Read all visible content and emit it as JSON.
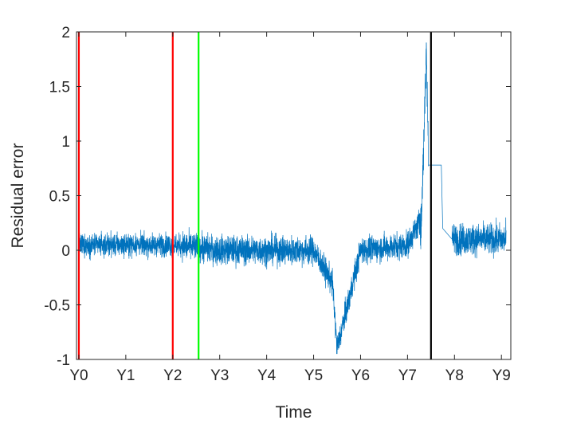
{
  "chart_data": {
    "type": "line",
    "title": "",
    "xlabel": "Time",
    "ylabel": "Residual error",
    "categories": [
      "Y0",
      "Y1",
      "Y2",
      "Y3",
      "Y4",
      "Y5",
      "Y6",
      "Y7",
      "Y8",
      "Y9"
    ],
    "xlim": [
      -0.05,
      9.2
    ],
    "ylim": [
      -1,
      2
    ],
    "yticks": [
      -1,
      -0.5,
      0,
      0.5,
      1,
      1.5,
      2
    ],
    "ytick_labels": [
      "-1",
      "-0.5",
      "0",
      "0.5",
      "1",
      "1.5",
      "2"
    ],
    "grid": false,
    "series": [
      {
        "color": "#0072BD",
        "description_points": [
          {
            "x": 0.0,
            "y": 0.05
          },
          {
            "x": 1.0,
            "y": 0.05
          },
          {
            "x": 2.0,
            "y": 0.05
          },
          {
            "x": 3.0,
            "y": 0.0
          },
          {
            "x": 4.0,
            "y": 0.0
          },
          {
            "x": 5.0,
            "y": 0.0
          },
          {
            "x": 5.4,
            "y": -0.3
          },
          {
            "x": 5.5,
            "y": -0.9
          },
          {
            "x": 6.0,
            "y": 0.0
          },
          {
            "x": 7.0,
            "y": 0.05
          },
          {
            "x": 7.3,
            "y": 0.3
          },
          {
            "x": 7.4,
            "y": 1.85
          },
          {
            "x": 7.45,
            "y": 0.78
          },
          {
            "x": 7.72,
            "y": 0.78
          },
          {
            "x": 7.75,
            "y": 0.2
          },
          {
            "x": 7.95,
            "y": 0.1
          },
          {
            "x": 8.5,
            "y": 0.1
          },
          {
            "x": 9.1,
            "y": 0.1
          }
        ]
      }
    ],
    "vertical_lines": [
      {
        "x": 0.0,
        "color": "#ff0000"
      },
      {
        "x": 2.0,
        "color": "#ff0000"
      },
      {
        "x": 2.55,
        "color": "#00ff00"
      },
      {
        "x": 7.5,
        "color": "#000000"
      }
    ]
  }
}
